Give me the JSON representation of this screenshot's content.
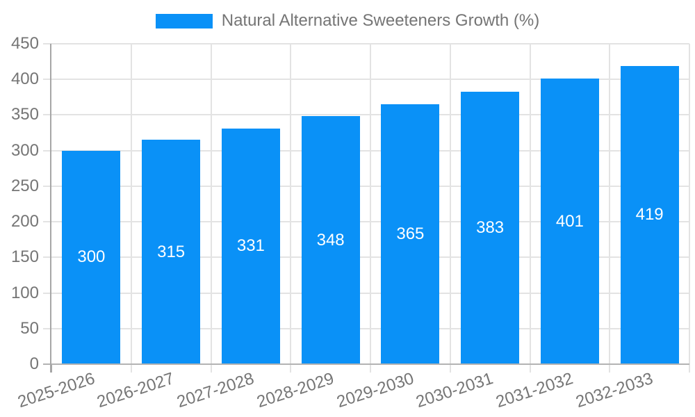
{
  "chart_data": {
    "type": "bar",
    "title": "",
    "legend_label": "Natural Alternative Sweeteners Growth (%)",
    "legend_position": "top-center",
    "categories": [
      "2025-2026",
      "2026-2027",
      "2027-2028",
      "2028-2029",
      "2029-2030",
      "2030-2031",
      "2031-2032",
      "2032-2033"
    ],
    "values": [
      300,
      315,
      331,
      348,
      365,
      383,
      401,
      419
    ],
    "value_labels_shown": true,
    "xlabel": "",
    "ylabel": "",
    "ylim": [
      0,
      450
    ],
    "y_ticks": [
      0,
      50,
      100,
      150,
      200,
      250,
      300,
      350,
      400,
      450
    ],
    "grid": true,
    "x_tick_rotation_deg": 18,
    "colors": {
      "bar": "#0A91F7",
      "grid": "#E3E3E3",
      "axis_left": "#A6A6A6",
      "axis_bottom": "#B3B3B3",
      "tick_text": "#757575",
      "value_text": "#FFFFFF",
      "background": "#FFFFFF"
    }
  }
}
